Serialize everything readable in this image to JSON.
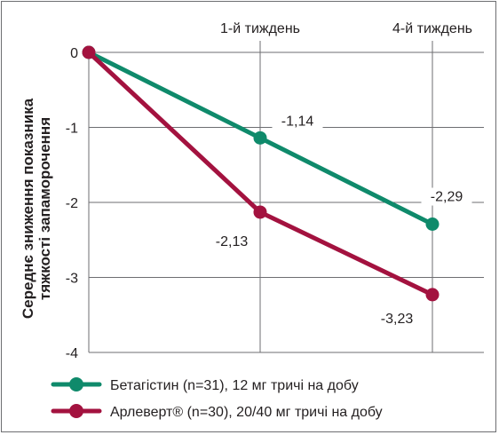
{
  "chart_data": {
    "type": "line",
    "title": "",
    "x": [
      "",
      "1-й тиждень",
      "4-й тиждень"
    ],
    "ylabel_lines": [
      "Середнє зниження показника",
      "тяжкості запаморочення"
    ],
    "xlabel": "",
    "ylim": [
      -4,
      0
    ],
    "yticks": [
      0,
      -1,
      -2,
      -3,
      -4
    ],
    "ytick_labels": [
      "0",
      "-1",
      "-2",
      "-3",
      "-4"
    ],
    "grid": true,
    "legend_position": "bottom",
    "series": [
      {
        "name": "Бетагістин (n=31), 12 мг тричі на добу",
        "color": "#0f8a6b",
        "values": [
          0,
          -1.14,
          -2.29
        ],
        "labels": [
          "",
          "-1,14",
          "-2,29"
        ]
      },
      {
        "name": "Арлеверт® (n=30), 20/40 мг тричі на добу",
        "color": "#a3123f",
        "values": [
          0,
          -2.13,
          -3.23
        ],
        "labels": [
          "",
          "-2,13",
          "-3,23"
        ]
      }
    ]
  }
}
